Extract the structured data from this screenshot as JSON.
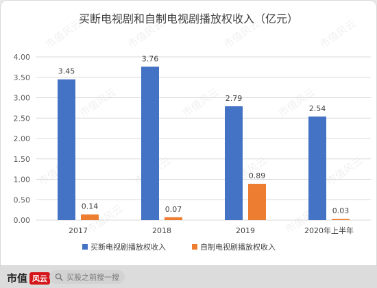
{
  "chart_data": {
    "type": "bar",
    "title": "买断电视剧和自制电视剧播放权收入（亿元）",
    "categories": [
      "2017",
      "2018",
      "2019",
      "2020年上半年"
    ],
    "series": [
      {
        "name": "买断电视剧播放权收入",
        "values": [
          3.45,
          3.76,
          2.79,
          2.54
        ],
        "color": "#4472c4"
      },
      {
        "name": "自制电视剧播放权收入",
        "values": [
          0.14,
          0.07,
          0.89,
          0.03
        ],
        "color": "#ed7d31"
      }
    ],
    "ylim": [
      0,
      4
    ],
    "yticks": [
      "0.00",
      "0.50",
      "1.00",
      "1.50",
      "2.00",
      "2.50",
      "3.00",
      "3.50",
      "4.00"
    ],
    "grid": true,
    "legend_position": "bottom"
  },
  "watermark": "市值风云",
  "footer": {
    "brand": "市值",
    "brand_badge": "风云",
    "search_icon": "search-icon",
    "search_placeholder": "买股之前搜一搜"
  }
}
